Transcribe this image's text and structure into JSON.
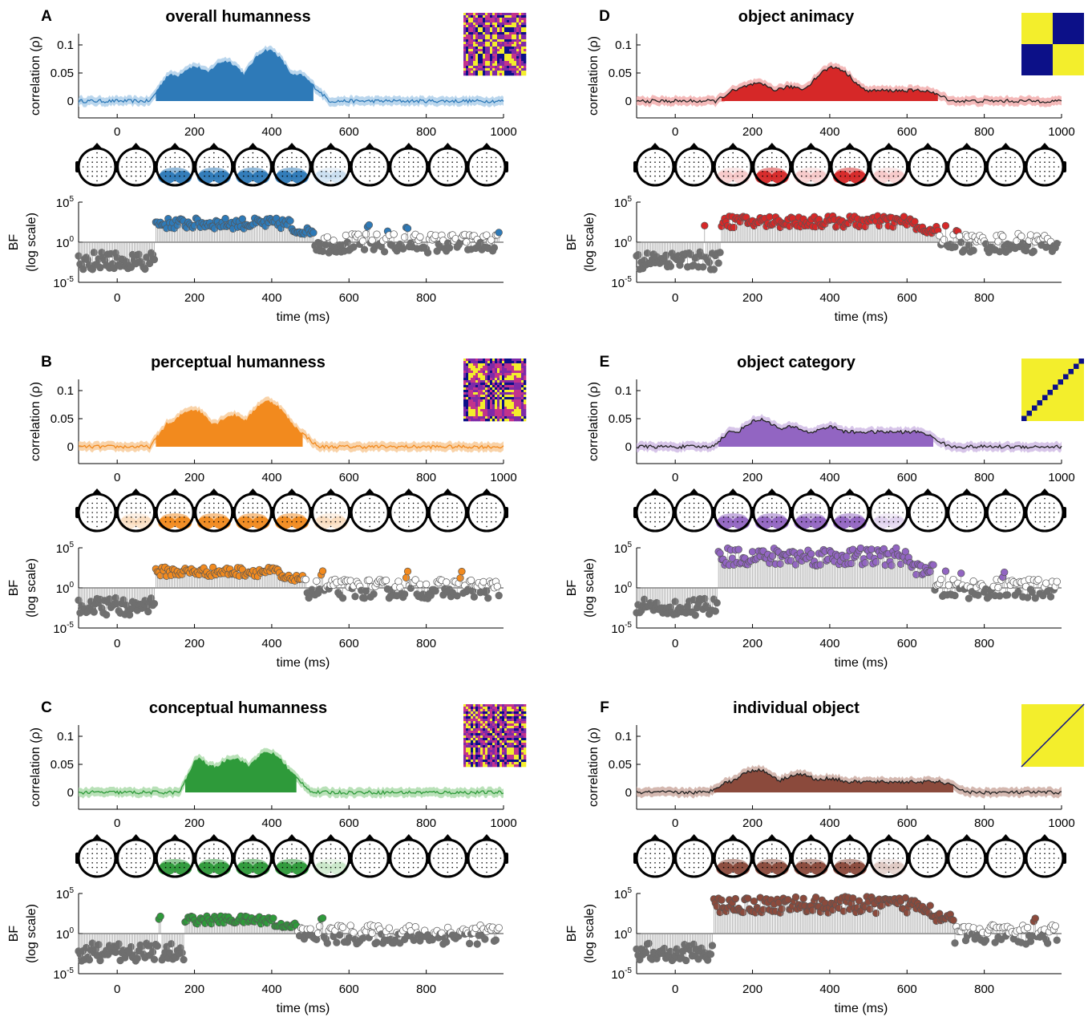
{
  "figure": {
    "ylabel_correlation": "correlation (ρ)",
    "ylabel_bf_top": "BF",
    "ylabel_bf_bottom": "(log scale)",
    "xlabel_bf": "time (ms)",
    "corr_yticks": [
      "0",
      "0.05",
      "0.1"
    ],
    "corr_xticks": [
      "0",
      "200",
      "400",
      "600",
      "800",
      "1000"
    ],
    "bf_xticks": [
      "0",
      "200",
      "400",
      "600",
      "800"
    ],
    "bf_yticks": [
      {
        "base": "10",
        "exp": "5"
      },
      {
        "base": "10",
        "exp": "0"
      },
      {
        "base": "10",
        "exp": "-5"
      }
    ]
  },
  "chart_data": [
    {
      "type": "area",
      "panel": "A",
      "title": "overall humanness",
      "color": "#2E7AB8",
      "light": "#A9CCE8",
      "x_range": [
        -100,
        1000
      ],
      "corr_ylim": [
        -0.03,
        0.12
      ],
      "bf_ylim_log10": [
        -5,
        5
      ],
      "rdm": "humanness-matrix",
      "onset": 100,
      "offset": 510,
      "corr_peaks": [
        {
          "t": 200,
          "v": 0.06
        },
        {
          "t": 280,
          "v": 0.07
        },
        {
          "t": 390,
          "v": 0.09
        }
      ],
      "bf_peak_log10": 3.0,
      "sparse_bf_hits": [
        650,
        700,
        750,
        990
      ],
      "topo_active": [
        2,
        3,
        4,
        5
      ],
      "topo_faint": [
        6
      ]
    },
    {
      "type": "area",
      "panel": "B",
      "title": "perceptual humanness",
      "color": "#F28A1E",
      "light": "#F8C894",
      "x_range": [
        -100,
        1000
      ],
      "corr_ylim": [
        -0.03,
        0.12
      ],
      "bf_ylim_log10": [
        -5,
        5
      ],
      "rdm": "humanness-matrix",
      "onset": 100,
      "offset": 480,
      "corr_peaks": [
        {
          "t": 195,
          "v": 0.065
        },
        {
          "t": 300,
          "v": 0.055
        },
        {
          "t": 390,
          "v": 0.08
        }
      ],
      "bf_peak_log10": 2.6,
      "sparse_bf_hits": [
        530,
        750,
        890
      ],
      "topo_active": [
        2,
        3,
        4,
        5
      ],
      "topo_faint": [
        1,
        6
      ]
    },
    {
      "type": "area",
      "panel": "C",
      "title": "conceptual humanness",
      "color": "#2E9A3A",
      "light": "#A8D9A6",
      "x_range": [
        -100,
        1000
      ],
      "corr_ylim": [
        -0.03,
        0.12
      ],
      "bf_ylim_log10": [
        -5,
        5
      ],
      "rdm": "humanness-matrix",
      "onset": 175,
      "offset": 465,
      "corr_peaks": [
        {
          "t": 200,
          "v": 0.06
        },
        {
          "t": 300,
          "v": 0.06
        },
        {
          "t": 390,
          "v": 0.07
        }
      ],
      "bf_peak_log10": 2.2,
      "sparse_bf_hits": [
        110,
        530
      ],
      "topo_active": [
        2,
        3,
        4,
        5
      ],
      "topo_faint": [
        6
      ]
    },
    {
      "type": "area",
      "panel": "D",
      "title": "object animacy",
      "color": "#D62828",
      "light": "#F1A7A7",
      "x_range": [
        -100,
        1000
      ],
      "corr_ylim": [
        -0.03,
        0.12
      ],
      "bf_ylim_log10": [
        -5,
        5
      ],
      "rdm": "animacy-matrix",
      "onset": 120,
      "offset": 680,
      "corr_peaks": [
        {
          "t": 210,
          "v": 0.03
        },
        {
          "t": 300,
          "v": 0.025
        },
        {
          "t": 410,
          "v": 0.06
        }
      ],
      "bf_peak_log10": 3.3,
      "sparse_bf_hits": [
        75,
        700,
        730
      ],
      "topo_active": [
        3,
        5
      ],
      "topo_faint": [
        2,
        4,
        6
      ]
    },
    {
      "type": "area",
      "panel": "E",
      "title": "object category",
      "color": "#9265C2",
      "light": "#CDB6E4",
      "x_range": [
        -100,
        1000
      ],
      "corr_ylim": [
        -0.03,
        0.12
      ],
      "bf_ylim_log10": [
        -5,
        5
      ],
      "rdm": "category-matrix",
      "onset": 110,
      "offset": 670,
      "corr_peaks": [
        {
          "t": 220,
          "v": 0.048
        },
        {
          "t": 300,
          "v": 0.035
        },
        {
          "t": 400,
          "v": 0.035
        }
      ],
      "bf_peak_log10": 5.0,
      "sparse_bf_hits": [
        700,
        740,
        850
      ],
      "topo_active": [
        2,
        3,
        4,
        5
      ],
      "topo_faint": [
        6
      ]
    },
    {
      "type": "area",
      "panel": "F",
      "title": "individual object",
      "color": "#8B4A3C",
      "light": "#C9A69C",
      "x_range": [
        -100,
        1000
      ],
      "corr_ylim": [
        -0.03,
        0.12
      ],
      "bf_ylim_log10": [
        -5,
        5
      ],
      "rdm": "identity-matrix",
      "onset": 100,
      "offset": 720,
      "corr_peaks": [
        {
          "t": 210,
          "v": 0.04
        },
        {
          "t": 320,
          "v": 0.032
        },
        {
          "t": 400,
          "v": 0.025
        }
      ],
      "bf_peak_log10": 4.6,
      "sparse_bf_hits": [
        930
      ],
      "topo_active": [
        2,
        3,
        4,
        5
      ],
      "topo_faint": [
        6
      ]
    }
  ]
}
